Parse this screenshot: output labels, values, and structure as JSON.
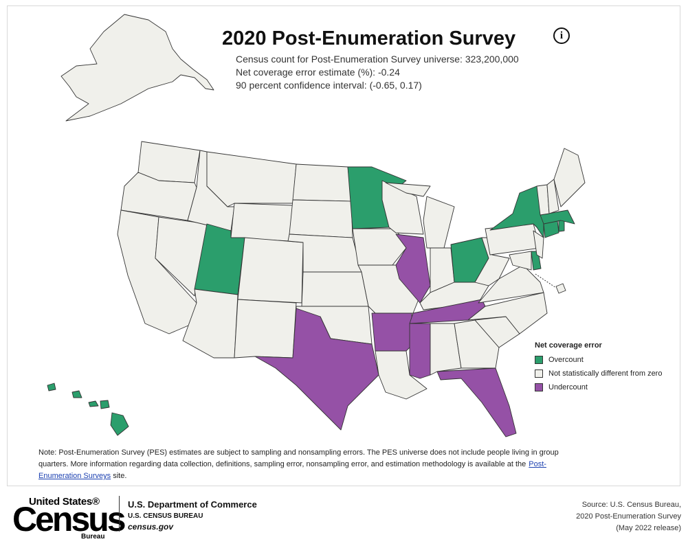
{
  "header": {
    "title": "2020 Post-Enumeration Survey",
    "info_icon": "i",
    "lines": [
      "Census count for Post-Enumeration Survey universe: 323,200,000",
      "Net coverage error estimate (%): -0.24",
      "90 percent confidence interval: (-0.65, 0.17)"
    ]
  },
  "legend": {
    "title": "Net coverage error",
    "items": [
      {
        "label": "Overcount",
        "color": "#2b9e6c"
      },
      {
        "label": "Not statistically different from zero",
        "color": "#f0f0eb"
      },
      {
        "label": "Undercount",
        "color": "#9551a6"
      }
    ]
  },
  "note": {
    "before": "Note: Post-Enumeration Survey (PES) estimates are subject to sampling and nonsampling errors. The PES universe does not include people living in group quarters. More information regarding data collection, definitions, sampling error, nonsampling error, and estimation methodology is available at the",
    "link": "Post-Enumeration Surveys",
    "after": " site."
  },
  "footer": {
    "logo": {
      "top": "United States®",
      "main": "Census",
      "bottom": "Bureau"
    },
    "agency": [
      "U.S. Department of Commerce",
      "U.S. CENSUS BUREAU",
      "census.gov"
    ],
    "source": [
      "Source: U.S. Census Bureau,",
      "2020 Post-Enumeration Survey",
      "(May 2022 release)"
    ]
  }
}
